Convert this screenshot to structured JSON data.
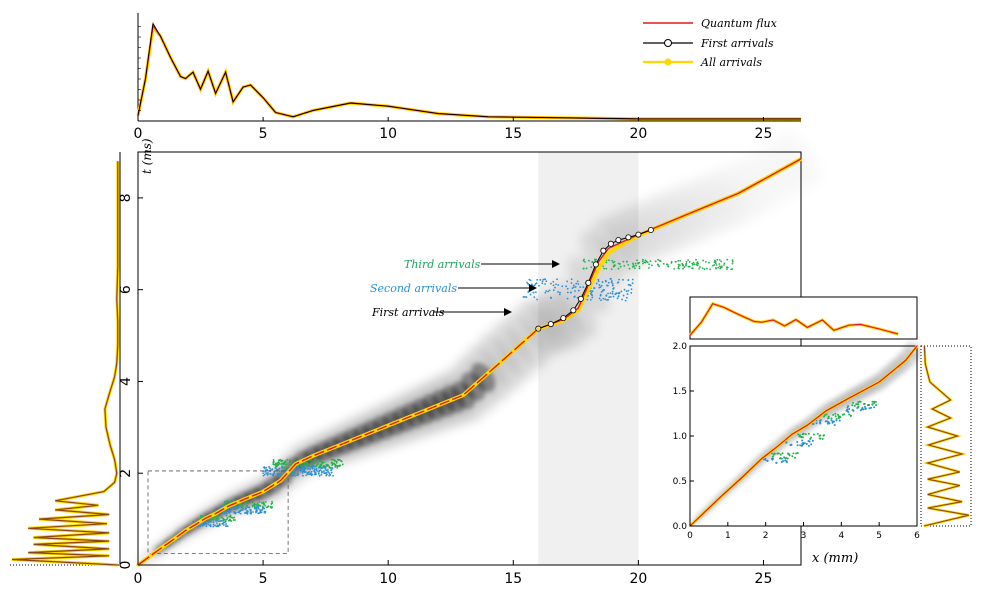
{
  "chart_data": [
    {
      "id": "main",
      "type": "scatter",
      "xlabel": "x (mm)",
      "ylabel": "t (ms)",
      "xlim": [
        0,
        26.5
      ],
      "ylim": [
        0,
        9
      ],
      "xticks": [
        "0",
        "5",
        "10",
        "15",
        "20",
        "25"
      ],
      "yticks": [
        "0",
        "2",
        "4",
        "6",
        "8"
      ],
      "shaded_region": [
        16,
        20
      ],
      "annotations": [
        "Third arrivals",
        "Second arrivals",
        "First arrivals"
      ],
      "series": [
        {
          "name": "Quantum flux",
          "color": "#e41a1c",
          "x": [
            0,
            0.8,
            1.4,
            1.9,
            2.3,
            2.7,
            3.1,
            3.6,
            4.2,
            5.0,
            5.7,
            6.3,
            7.0,
            8.0,
            10.0,
            13.0,
            16.0,
            17.0,
            17.6,
            18.0,
            18.4,
            18.8,
            19.4,
            20.0,
            22.0,
            24.0,
            26.5
          ],
          "y": [
            0,
            0.32,
            0.55,
            0.75,
            0.88,
            1.02,
            1.12,
            1.28,
            1.42,
            1.6,
            1.84,
            2.2,
            2.38,
            2.6,
            3.04,
            3.7,
            5.15,
            5.35,
            5.6,
            6.1,
            6.6,
            6.9,
            7.05,
            7.2,
            7.65,
            8.1,
            8.85
          ]
        },
        {
          "name": "First arrivals",
          "color": "#000000",
          "x": [
            16.0,
            16.5,
            17.0,
            17.4,
            17.7,
            18.0,
            18.3,
            18.6,
            18.9,
            19.2,
            19.6,
            20.0,
            20.5
          ],
          "y": [
            5.15,
            5.25,
            5.38,
            5.55,
            5.8,
            6.15,
            6.55,
            6.85,
            7.0,
            7.08,
            7.14,
            7.2,
            7.3
          ]
        },
        {
          "name": "All arrivals",
          "color": "#ffd700",
          "x": [
            0,
            0.8,
            1.4,
            1.9,
            2.3,
            2.7,
            3.1,
            3.6,
            4.2,
            5.0,
            5.7,
            6.3,
            7.0,
            8.0,
            10.0,
            13.0,
            16.0,
            17.0,
            17.6,
            18.0,
            18.4,
            18.8,
            19.4,
            20.0,
            22.0,
            24.0,
            26.5
          ],
          "y": [
            0,
            0.32,
            0.55,
            0.75,
            0.88,
            1.02,
            1.12,
            1.28,
            1.42,
            1.6,
            1.84,
            2.2,
            2.38,
            2.6,
            3.04,
            3.7,
            5.15,
            5.33,
            5.55,
            6.0,
            6.45,
            6.8,
            7.0,
            7.18,
            7.65,
            8.1,
            8.85
          ]
        }
      ]
    },
    {
      "id": "top",
      "type": "line",
      "xlim": [
        0,
        26.5
      ],
      "xticks": [
        "0",
        "5",
        "10",
        "15",
        "20",
        "25"
      ],
      "legend": [
        "Quantum flux",
        "First arrivals",
        "All arrivals"
      ],
      "legend_position": "top-right",
      "series": [
        {
          "name": "Quantum flux",
          "color": "#e41a1c",
          "x": [
            0,
            0.3,
            0.6,
            0.9,
            1.3,
            1.7,
            1.9,
            2.2,
            2.5,
            2.8,
            3.1,
            3.5,
            3.8,
            4.2,
            4.5,
            5.0,
            5.5,
            6.2,
            7.0,
            8.5,
            10.0,
            12.0,
            14.0,
            17.0,
            20.0,
            26.5
          ],
          "y": [
            0.05,
            0.4,
            0.9,
            0.8,
            0.6,
            0.42,
            0.4,
            0.46,
            0.3,
            0.47,
            0.26,
            0.46,
            0.18,
            0.32,
            0.34,
            0.22,
            0.08,
            0.04,
            0.1,
            0.17,
            0.14,
            0.07,
            0.04,
            0.03,
            0.02,
            0.02
          ]
        },
        {
          "name": "First arrivals",
          "color": "#000000",
          "x": [
            0,
            0.3,
            0.6,
            0.9,
            1.3,
            1.7,
            1.9,
            2.2,
            2.5,
            2.8,
            3.1,
            3.5,
            3.8,
            4.2,
            4.5,
            5.0,
            5.5,
            6.2,
            7.0,
            8.5,
            10.0,
            12.0,
            14.0,
            17.0,
            20.0,
            26.5
          ],
          "y": [
            0.05,
            0.4,
            0.92,
            0.8,
            0.6,
            0.42,
            0.4,
            0.46,
            0.3,
            0.47,
            0.26,
            0.46,
            0.18,
            0.32,
            0.34,
            0.22,
            0.08,
            0.04,
            0.1,
            0.17,
            0.14,
            0.07,
            0.04,
            0.03,
            0.02,
            0.02
          ]
        },
        {
          "name": "All arrivals",
          "color": "#ffd700",
          "x": [
            0,
            0.3,
            0.6,
            0.9,
            1.3,
            1.7,
            1.9,
            2.2,
            2.5,
            2.8,
            3.1,
            3.5,
            3.8,
            4.2,
            4.5,
            5.0,
            5.5,
            6.2,
            7.0,
            8.5,
            10.0,
            12.0,
            14.0,
            17.0,
            20.0,
            26.5
          ],
          "y": [
            0.05,
            0.4,
            0.88,
            0.8,
            0.6,
            0.42,
            0.4,
            0.46,
            0.3,
            0.47,
            0.26,
            0.46,
            0.18,
            0.32,
            0.34,
            0.22,
            0.08,
            0.04,
            0.1,
            0.17,
            0.14,
            0.07,
            0.04,
            0.03,
            0.02,
            0.02
          ]
        }
      ]
    },
    {
      "id": "left",
      "type": "line",
      "orientation": "vertical",
      "ylim": [
        0,
        9
      ],
      "series": [
        {
          "name": "All arrivals",
          "color": "#8b4513",
          "t": [
            0,
            0.12,
            0.2,
            0.27,
            0.35,
            0.45,
            0.52,
            0.6,
            0.7,
            0.8,
            0.9,
            1.0,
            1.1,
            1.2,
            1.3,
            1.4,
            1.6,
            1.8,
            2.0,
            2.3,
            2.6,
            3.0,
            3.4,
            3.8,
            4.1,
            4.4,
            4.8,
            5.3,
            5.8,
            6.5,
            7.2,
            8.0,
            8.8
          ],
          "v": [
            0.02,
            1.0,
            0.1,
            0.85,
            0.1,
            0.8,
            0.1,
            0.8,
            0.1,
            0.85,
            0.12,
            0.75,
            0.1,
            0.6,
            0.2,
            0.6,
            0.15,
            0.05,
            0.03,
            0.05,
            0.09,
            0.13,
            0.14,
            0.09,
            0.05,
            0.03,
            0.02,
            0.02,
            0.03,
            0.02,
            0.02,
            0.02,
            0.02
          ]
        }
      ]
    },
    {
      "id": "inset",
      "type": "scatter",
      "xlim": [
        0,
        6
      ],
      "ylim": [
        0,
        2
      ],
      "xticks": [
        "0",
        "1",
        "2",
        "3",
        "4",
        "5",
        "6"
      ],
      "yticks": [
        "0.0",
        "0.5",
        "1.0",
        "1.5",
        "2.0"
      ],
      "series": [
        {
          "name": "Quantum flux",
          "color": "#e41a1c",
          "x": [
            0,
            0.8,
            1.4,
            1.9,
            2.3,
            2.7,
            3.1,
            3.6,
            4.2,
            5.0,
            5.7,
            6.0
          ],
          "y": [
            0,
            0.32,
            0.55,
            0.75,
            0.88,
            1.02,
            1.12,
            1.28,
            1.42,
            1.6,
            1.84,
            2.0
          ]
        }
      ]
    }
  ]
}
